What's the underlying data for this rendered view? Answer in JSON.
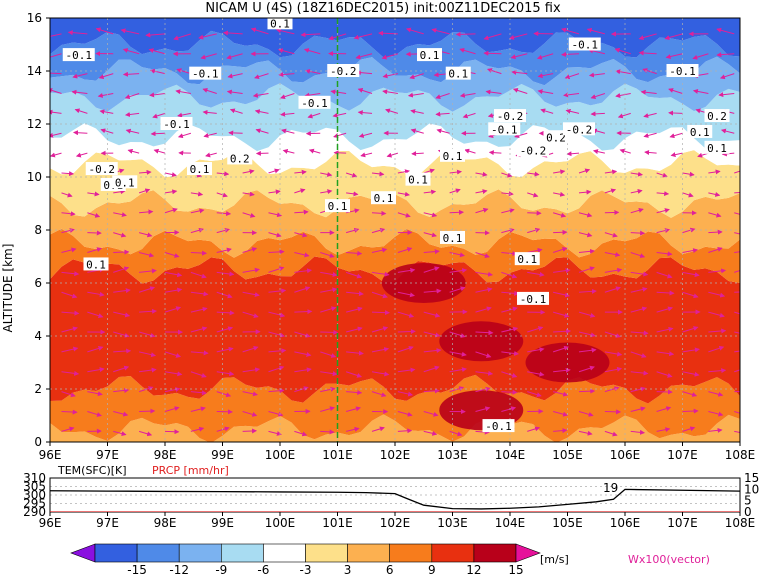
{
  "title": "NICAM U (4S) (18Z16DEC2015) init:00Z11DEC2015 fix",
  "chart_data": [
    {
      "type": "heatmap",
      "name": "main-cross-section",
      "xlabel": "",
      "ylabel": "ALTITUDE [km]",
      "xlim": [
        96,
        108
      ],
      "ylim": [
        0,
        16
      ],
      "x_ticks": [
        "96E",
        "97E",
        "98E",
        "99E",
        "100E",
        "101E",
        "102E",
        "103E",
        "104E",
        "105E",
        "106E",
        "107E",
        "108E"
      ],
      "y_ticks": [
        "0",
        "2",
        "4",
        "6",
        "8",
        "10",
        "12",
        "14",
        "16"
      ],
      "marker_longitude": 101,
      "zonal_wind_bands": [
        {
          "z_from": 0.0,
          "z_to": 0.5,
          "u": 6
        },
        {
          "z_from": 0.5,
          "z_to": 2.0,
          "u": 9
        },
        {
          "z_from": 2.0,
          "z_to": 6.5,
          "u": 12
        },
        {
          "z_from": 6.5,
          "z_to": 7.5,
          "u": 9
        },
        {
          "z_from": 7.5,
          "z_to": 9.0,
          "u": 6
        },
        {
          "z_from": 9.0,
          "z_to": 10.5,
          "u": 3
        },
        {
          "z_from": 10.5,
          "z_to": 11.5,
          "u": -3
        },
        {
          "z_from": 11.5,
          "z_to": 13.0,
          "u": -6
        },
        {
          "z_from": 13.0,
          "z_to": 14.0,
          "u": -9
        },
        {
          "z_from": 14.0,
          "z_to": 15.0,
          "u": -12
        },
        {
          "z_from": 15.0,
          "z_to": 16.0,
          "u": -15
        }
      ],
      "strong_cores": [
        {
          "lon": 103.5,
          "z": 3.8,
          "u": 15
        },
        {
          "lon": 102.5,
          "z": 6.0,
          "u": 15
        },
        {
          "lon": 105.0,
          "z": 3.0,
          "u": 15
        },
        {
          "lon": 103.5,
          "z": 1.2,
          "u": 15
        }
      ],
      "contour_labels": [
        {
          "lon": 96.5,
          "z": 14.6,
          "text": "-0.1"
        },
        {
          "lon": 98.7,
          "z": 13.9,
          "text": "-0.1"
        },
        {
          "lon": 98.2,
          "z": 12.0,
          "text": "-0.1"
        },
        {
          "lon": 96.9,
          "z": 10.3,
          "text": "-0.2"
        },
        {
          "lon": 97.1,
          "z": 9.7,
          "text": "0.1"
        },
        {
          "lon": 97.3,
          "z": 9.8,
          "text": "0.1"
        },
        {
          "lon": 98.6,
          "z": 10.3,
          "text": "0.1"
        },
        {
          "lon": 99.3,
          "z": 10.7,
          "text": "0.2"
        },
        {
          "lon": 100.0,
          "z": 15.8,
          "text": "0.1"
        },
        {
          "lon": 100.6,
          "z": 12.8,
          "text": "-0.1"
        },
        {
          "lon": 101.1,
          "z": 14.0,
          "text": "-0.2"
        },
        {
          "lon": 101.0,
          "z": 8.9,
          "text": "0.1"
        },
        {
          "lon": 101.8,
          "z": 9.2,
          "text": "0.1"
        },
        {
          "lon": 102.4,
          "z": 9.9,
          "text": "0.1"
        },
        {
          "lon": 102.6,
          "z": 14.6,
          "text": "0.1"
        },
        {
          "lon": 103.1,
          "z": 13.9,
          "text": "0.1"
        },
        {
          "lon": 103.0,
          "z": 10.8,
          "text": "0.1"
        },
        {
          "lon": 103.0,
          "z": 7.7,
          "text": "0.1"
        },
        {
          "lon": 104.0,
          "z": 12.3,
          "text": "-0.2"
        },
        {
          "lon": 103.9,
          "z": 11.8,
          "text": "-0.1"
        },
        {
          "lon": 104.4,
          "z": 11.0,
          "text": "-0.2"
        },
        {
          "lon": 104.8,
          "z": 11.5,
          "text": "0.2"
        },
        {
          "lon": 105.2,
          "z": 11.8,
          "text": "-0.2"
        },
        {
          "lon": 105.3,
          "z": 15.0,
          "text": "-0.1"
        },
        {
          "lon": 104.4,
          "z": 5.4,
          "text": "-0.1"
        },
        {
          "lon": 104.3,
          "z": 6.9,
          "text": "0.1"
        },
        {
          "lon": 103.8,
          "z": 0.6,
          "text": "-0.1"
        },
        {
          "lon": 96.8,
          "z": 6.7,
          "text": "0.1"
        },
        {
          "lon": 107.0,
          "z": 14.0,
          "text": "-0.1"
        },
        {
          "lon": 107.6,
          "z": 12.3,
          "text": "0.2"
        },
        {
          "lon": 107.3,
          "z": 11.7,
          "text": "0.1"
        },
        {
          "lon": 107.6,
          "z": 11.1,
          "text": "0.1"
        }
      ]
    },
    {
      "type": "line",
      "name": "surface-panel",
      "left_label": "TEM(SFC)[K]",
      "right_label": "PRCP [mm/hr]",
      "xlim": [
        96,
        108
      ],
      "ylim_left": [
        290,
        310
      ],
      "ylim_right": [
        0,
        15
      ],
      "left_ticks": [
        "290",
        "295",
        "300",
        "305",
        "310"
      ],
      "right_ticks": [
        "0",
        "5",
        "10",
        "15"
      ],
      "x_ticks": [
        "96E",
        "97E",
        "98E",
        "99E",
        "100E",
        "101E",
        "102E",
        "103E",
        "104E",
        "105E",
        "106E",
        "107E",
        "108E"
      ],
      "tem_annotation": "19",
      "tem_series": {
        "x": [
          96,
          97,
          98,
          99,
          100,
          101,
          101.5,
          102,
          102.2,
          102.5,
          103,
          103.5,
          104,
          104.5,
          105,
          105.5,
          105.8,
          106,
          107,
          108
        ],
        "y": [
          302.5,
          302.3,
          302.1,
          302.0,
          301.8,
          301.6,
          301.4,
          300.8,
          298.0,
          294.0,
          292.0,
          291.8,
          292.2,
          293.0,
          294.5,
          296.0,
          297.5,
          303.3,
          302.8,
          302.3
        ]
      },
      "prcp_series": {
        "x": [
          96,
          108
        ],
        "y": [
          0,
          0
        ]
      }
    },
    {
      "type": "colorbar",
      "name": "colorbar",
      "tick_labels": [
        "-15",
        "-12",
        "-9",
        "-6",
        "-3",
        "3",
        "6",
        "9",
        "12",
        "15"
      ],
      "unit": "[m/s]",
      "colors": [
        "#8a10e0",
        "#3360e0",
        "#4f8ae8",
        "#7bb2f0",
        "#a8dcf2",
        "#ffffff",
        "#fde08a",
        "#fcb050",
        "#f77c1c",
        "#e83010",
        "#b8001a",
        "#e6109a"
      ],
      "vector_label": "Wx100(vector)"
    }
  ]
}
